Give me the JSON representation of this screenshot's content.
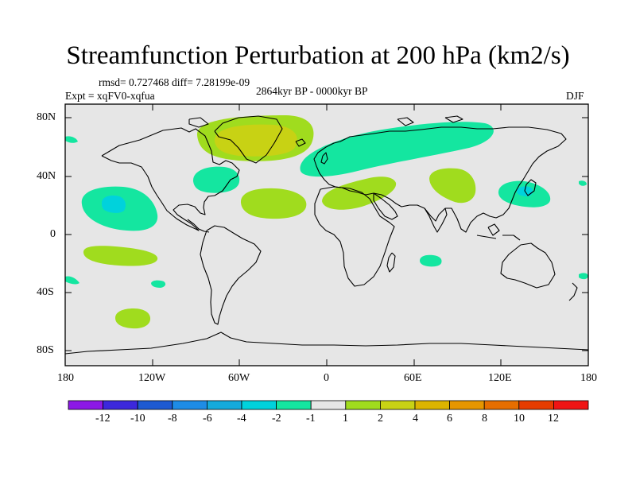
{
  "title": "Streamfunction Perturbation at 200 hPa (km2/s)",
  "stats": "rmsd= 0.727468 diff= 7.28199e-09",
  "period": "2864kyr BP - 0000kyr BP",
  "experiment": "Expt = xqFV0-xqfua",
  "season": "DJF",
  "y_ticks": [
    "80N",
    "40N",
    "0",
    "40S",
    "80S"
  ],
  "x_ticks": [
    "180",
    "120W",
    "60W",
    "0",
    "60E",
    "120E",
    "180"
  ],
  "colorbar": {
    "colors": [
      "#8c19e6",
      "#3c28dc",
      "#1e5ad2",
      "#1e8ce6",
      "#14aadc",
      "#00d2dc",
      "#14e6a0",
      "#e6e6e6",
      "#a0dc1e",
      "#c8d214",
      "#dcb400",
      "#e69600",
      "#e66e00",
      "#e63c00",
      "#f01414"
    ],
    "labels": [
      "-12",
      "-10",
      "-8",
      "-6",
      "-4",
      "-2",
      "-1",
      "1",
      "2",
      "4",
      "6",
      "8",
      "10",
      "12"
    ]
  },
  "colors": {
    "ocean": "#e6e6e6",
    "level_plus1": "#a0dc1e",
    "level_plus2": "#c8d214",
    "level_minus1": "#14e6a0",
    "level_minus2": "#00d2dc"
  },
  "anomalies": [
    {
      "name": "greenland-positive",
      "sign": "+",
      "strength": 2
    },
    {
      "name": "eurasia-negative",
      "sign": "-",
      "strength": 1
    },
    {
      "name": "north-atlantic-negative",
      "sign": "-",
      "strength": 1
    },
    {
      "name": "east-pacific-negative",
      "sign": "-",
      "strength": 2
    },
    {
      "name": "west-pacific-negative",
      "sign": "-",
      "strength": 2
    },
    {
      "name": "central-atlantic-positive",
      "sign": "+",
      "strength": 1
    },
    {
      "name": "north-africa-positive",
      "sign": "+",
      "strength": 1
    },
    {
      "name": "central-asia-positive",
      "sign": "+",
      "strength": 1
    },
    {
      "name": "south-pacific-positive",
      "sign": "+",
      "strength": 1
    },
    {
      "name": "southern-ocean-positive",
      "sign": "+",
      "strength": 1
    },
    {
      "name": "indian-ocean-negative",
      "sign": "-",
      "strength": 1
    }
  ]
}
